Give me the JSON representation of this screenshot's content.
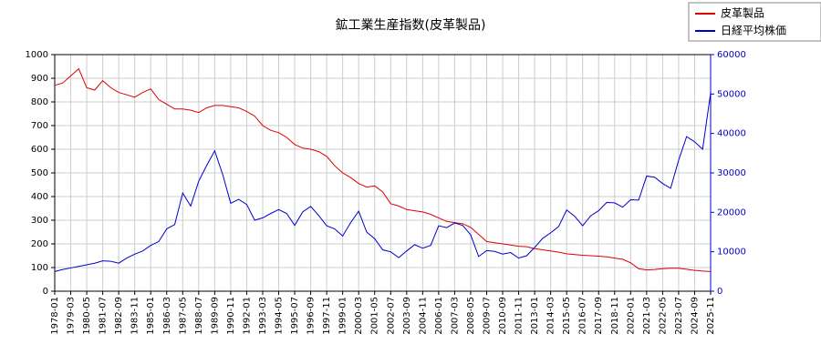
{
  "chart_data": {
    "type": "line",
    "title": "鉱工業生産指数(皮革製品)",
    "x": [
      "1978-01",
      "1978-08",
      "1979-03",
      "1979-10",
      "1980-05",
      "1980-12",
      "1981-07",
      "1982-02",
      "1982-09",
      "1983-04",
      "1983-11",
      "1984-06",
      "1985-01",
      "1985-08",
      "1986-03",
      "1986-10",
      "1987-05",
      "1987-12",
      "1988-07",
      "1989-02",
      "1989-09",
      "1990-04",
      "1990-11",
      "1991-06",
      "1992-01",
      "1992-08",
      "1993-03",
      "1993-10",
      "1994-05",
      "1994-12",
      "1995-07",
      "1996-02",
      "1996-09",
      "1997-04",
      "1997-11",
      "1998-06",
      "1999-01",
      "1999-08",
      "2000-03",
      "2000-10",
      "2001-05",
      "2001-12",
      "2002-07",
      "2003-02",
      "2003-09",
      "2004-04",
      "2004-11",
      "2005-06",
      "2006-01",
      "2006-08",
      "2007-03",
      "2007-10",
      "2008-05",
      "2008-12",
      "2009-07",
      "2010-02",
      "2010-09",
      "2011-04",
      "2011-11",
      "2012-06",
      "2013-01",
      "2013-08",
      "2014-03",
      "2014-10",
      "2015-05",
      "2015-12",
      "2016-07",
      "2017-02",
      "2017-09",
      "2018-04",
      "2018-11",
      "2019-06",
      "2020-01",
      "2020-08",
      "2021-03",
      "2021-10",
      "2022-05",
      "2022-12",
      "2023-07",
      "2024-02",
      "2024-09",
      "2025-04",
      "2025-11"
    ],
    "xticks": [
      "1978-01",
      "1979-03",
      "1980-05",
      "1981-07",
      "1982-09",
      "1983-11",
      "1985-01",
      "1986-03",
      "1987-05",
      "1988-07",
      "1989-09",
      "1990-11",
      "1992-01",
      "1993-03",
      "1994-05",
      "1995-07",
      "1996-09",
      "1997-11",
      "1999-01",
      "2000-03",
      "2001-05",
      "2002-07",
      "2003-09",
      "2004-11",
      "2006-01",
      "2007-03",
      "2008-05",
      "2009-07",
      "2010-09",
      "2011-11",
      "2013-01",
      "2014-03",
      "2015-05",
      "2016-07",
      "2017-09",
      "2018-11",
      "2020-01",
      "2021-03",
      "2022-05",
      "2023-07",
      "2024-09",
      "2025-11"
    ],
    "ylim": [
      0,
      1000
    ],
    "yticks": [
      0,
      100,
      200,
      300,
      400,
      500,
      600,
      700,
      800,
      900,
      1000
    ],
    "y2lim": [
      0,
      60000
    ],
    "y2ticks": [
      0,
      10000,
      20000,
      30000,
      40000,
      50000,
      60000
    ],
    "grid": true,
    "legend": "top-right",
    "series": [
      {
        "name": "皮革製品",
        "color": "#dd0000",
        "values": [
          870,
          880,
          910,
          940,
          860,
          850,
          890,
          860,
          840,
          830,
          820,
          840,
          855,
          810,
          790,
          770,
          770,
          765,
          755,
          775,
          785,
          785,
          780,
          775,
          760,
          740,
          700,
          680,
          670,
          650,
          620,
          605,
          600,
          590,
          570,
          530,
          500,
          480,
          455,
          440,
          445,
          420,
          370,
          360,
          345,
          340,
          335,
          325,
          310,
          295,
          290,
          285,
          270,
          240,
          210,
          205,
          200,
          195,
          190,
          188,
          180,
          175,
          170,
          165,
          158,
          155,
          152,
          150,
          148,
          145,
          140,
          135,
          120,
          95,
          90,
          92,
          95,
          97,
          97,
          93,
          88,
          85,
          83
        ]
      },
      {
        "name": "日経平均株価",
        "color": "#0000cc",
        "axis": "y2",
        "values": [
          5000,
          5500,
          5900,
          6300,
          6700,
          7100,
          7700,
          7600,
          7100,
          8400,
          9400,
          10200,
          11600,
          12600,
          15800,
          16900,
          24900,
          21600,
          27900,
          31900,
          35600,
          29600,
          22300,
          23300,
          22000,
          18000,
          18600,
          19700,
          20700,
          19700,
          16700,
          20100,
          21500,
          19200,
          16600,
          15800,
          14000,
          17400,
          20300,
          15000,
          13300,
          10500,
          10000,
          8500,
          10200,
          11800,
          10900,
          11600,
          16600,
          16100,
          17300,
          16700,
          14300,
          8800,
          10300,
          10100,
          9400,
          9800,
          8400,
          9000,
          11100,
          13400,
          14800,
          16400,
          20600,
          19000,
          16600,
          19100,
          20400,
          22500,
          22400,
          21300,
          23200,
          23100,
          29200,
          28900,
          27300,
          26100,
          33200,
          39200,
          37900,
          36000,
          50300
        ]
      }
    ]
  }
}
